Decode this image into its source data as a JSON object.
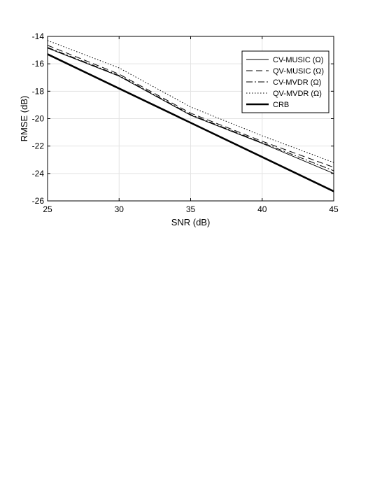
{
  "chart_data": {
    "type": "line",
    "xlabel": "SNR (dB)",
    "ylabel": "RMSE (dB)",
    "xlim": [
      25,
      45
    ],
    "ylim": [
      -26,
      -14
    ],
    "xticks": [
      25,
      30,
      35,
      40,
      45
    ],
    "yticks": [
      -14,
      -16,
      -18,
      -20,
      -22,
      -24,
      -26
    ],
    "grid": true,
    "legend_position": "top-right",
    "x": [
      25,
      30,
      35,
      40,
      45
    ],
    "series": [
      {
        "name": "CV-MUSIC (Ω)",
        "style": "solid",
        "width": "thin",
        "values": [
          -14.85,
          -16.9,
          -19.75,
          -21.8,
          -24.0
        ]
      },
      {
        "name": "QV-MUSIC (Ω)",
        "style": "dashed",
        "width": "thin",
        "values": [
          -14.65,
          -16.75,
          -19.6,
          -21.65,
          -23.55
        ]
      },
      {
        "name": "CV-MVDR (Ω)",
        "style": "dashdot",
        "width": "thin",
        "values": [
          -14.8,
          -16.85,
          -19.7,
          -21.75,
          -23.8
        ]
      },
      {
        "name": "QV-MVDR (Ω)",
        "style": "dotted",
        "width": "thin",
        "values": [
          -14.3,
          -16.3,
          -19.15,
          -21.25,
          -23.2
        ]
      },
      {
        "name": "CRB",
        "style": "solid",
        "width": "thick",
        "values": [
          -15.3,
          -17.8,
          -20.3,
          -22.8,
          -25.3
        ]
      }
    ]
  }
}
